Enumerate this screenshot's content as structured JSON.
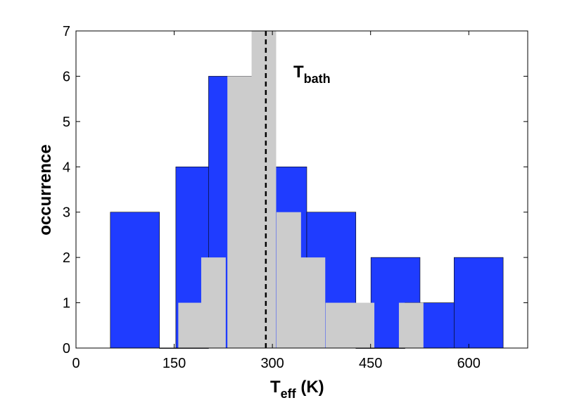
{
  "chart_data": {
    "type": "bar",
    "xlabel_main": "T",
    "xlabel_sub": "eff",
    "xlabel_unit": " (K)",
    "ylabel": "occurrence",
    "annotation_main": "T",
    "annotation_sub": "bath",
    "xlim": [
      0,
      690
    ],
    "ylim": [
      0,
      7
    ],
    "xticks": [
      0,
      150,
      300,
      450,
      600
    ],
    "yticks": [
      0,
      1,
      2,
      3,
      4,
      5,
      6,
      7
    ],
    "reference_line_x": 290,
    "series": [
      {
        "color": "#1f3cff",
        "bin_width": 75,
        "bins": [
          {
            "center": 90,
            "value": 3
          },
          {
            "center": 165,
            "value": 0
          },
          {
            "center": 190,
            "value": 4
          },
          {
            "center": 240,
            "value": 6
          },
          {
            "center": 315,
            "value": 4
          },
          {
            "center": 390,
            "value": 3
          },
          {
            "center": 465,
            "value": 0
          },
          {
            "center": 488,
            "value": 2
          },
          {
            "center": 540,
            "value": 1
          },
          {
            "center": 615,
            "value": 2
          }
        ]
      },
      {
        "color": "#cccccc",
        "bin_width": 37.5,
        "bins": [
          {
            "center": 175,
            "value": 1
          },
          {
            "center": 210,
            "value": 2
          },
          {
            "center": 250,
            "value": 6
          },
          {
            "center": 287,
            "value": 7
          },
          {
            "center": 325,
            "value": 3
          },
          {
            "center": 362,
            "value": 2
          },
          {
            "center": 400,
            "value": 1
          },
          {
            "center": 437,
            "value": 1
          },
          {
            "center": 475,
            "value": 0
          },
          {
            "center": 512,
            "value": 1
          },
          {
            "center": 550,
            "value": 0
          }
        ]
      }
    ]
  }
}
